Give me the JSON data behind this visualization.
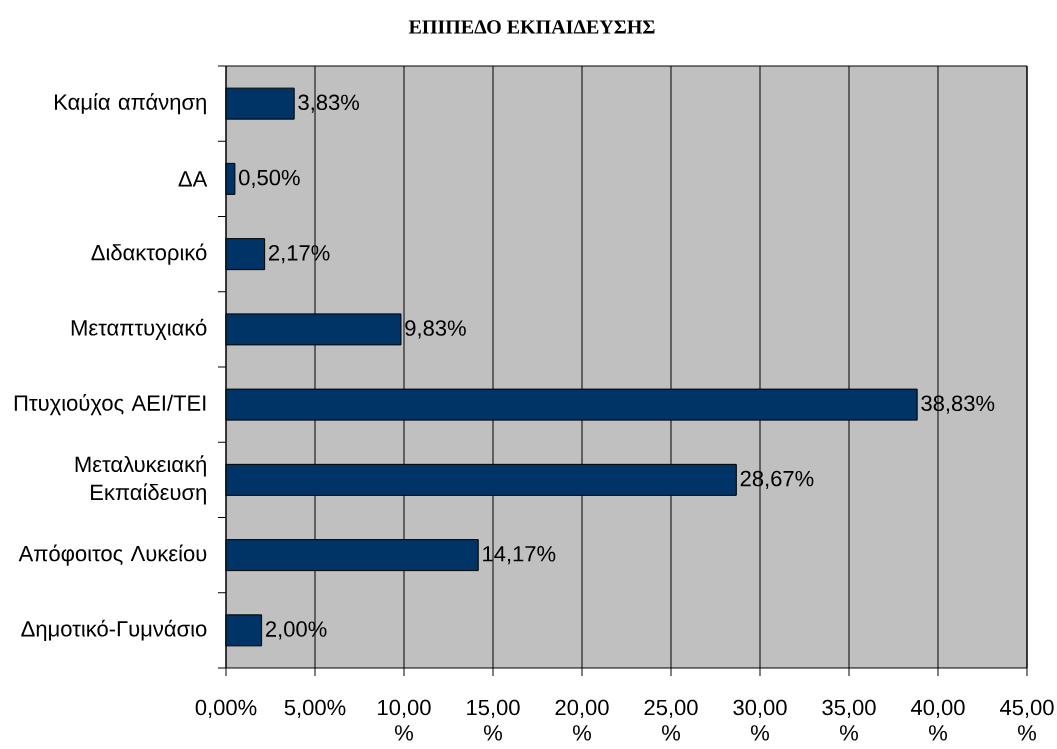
{
  "chart_data": {
    "type": "bar",
    "orientation": "horizontal",
    "title": "ΕΠΙΠΕΔΟ ΕΚΠΑΙΔΕΥΣΗΣ",
    "categories": [
      "Καμία απάνηση",
      "ΔΑ",
      "Διδακτορικό",
      "Μεταπτυχιακό",
      "Πτυχιούχος ΑΕΙ/ΤΕΙ",
      "Μεταλυκειακή Εκπαίδευση",
      "Απόφοιτος Λυκείου",
      "Δημοτικό-Γυμνάσιο"
    ],
    "values": [
      3.83,
      0.5,
      2.17,
      9.83,
      38.83,
      28.67,
      14.17,
      2.0
    ],
    "value_labels": [
      "3,83%",
      "0,50%",
      "2,17%",
      "9,83%",
      "38,83%",
      "28,67%",
      "14,17%",
      "2,00%"
    ],
    "color": "#003366",
    "xlim": [
      0,
      45
    ],
    "xticks": [
      {
        "value": 0,
        "label": "0,00%"
      },
      {
        "value": 5,
        "label": "5,00%"
      },
      {
        "value": 10,
        "label": "10,00%"
      },
      {
        "value": 15,
        "label": "15,00%"
      },
      {
        "value": 20,
        "label": "20,00%"
      },
      {
        "value": 25,
        "label": "25,00%"
      },
      {
        "value": 30,
        "label": "30,00%"
      },
      {
        "value": 35,
        "label": "35,00%"
      },
      {
        "value": 40,
        "label": "40,00%"
      },
      {
        "value": 45,
        "label": "45,00%"
      }
    ],
    "grid": "x"
  }
}
